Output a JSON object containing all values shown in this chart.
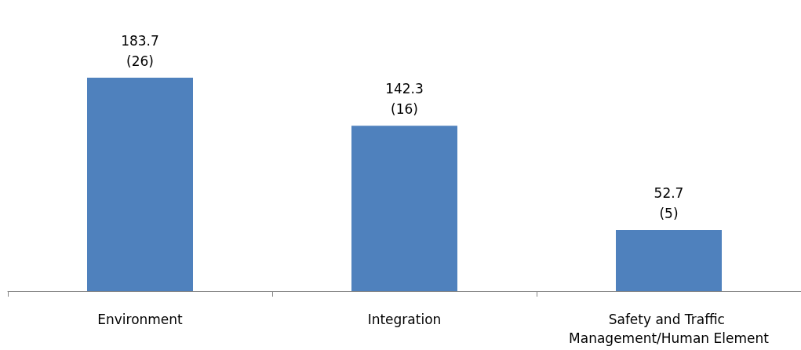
{
  "chart_data": {
    "type": "bar",
    "categories": [
      "Environment",
      "Integration",
      "Safety and Traffic Management/Human Element"
    ],
    "values": [
      183.7,
      142.3,
      52.7
    ],
    "value_labels": [
      "183.7\n(26)",
      "142.3\n(16)",
      "52.7\n(5)"
    ],
    "color": "#4f81bd"
  }
}
